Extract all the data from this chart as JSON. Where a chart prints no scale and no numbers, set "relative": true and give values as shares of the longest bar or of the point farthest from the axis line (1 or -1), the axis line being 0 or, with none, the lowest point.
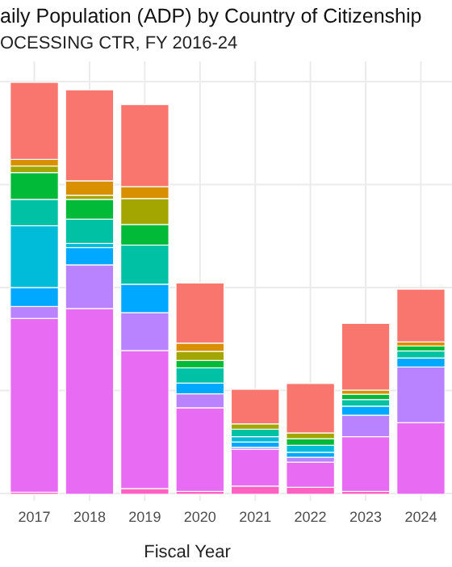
{
  "chart_data": {
    "type": "bar",
    "title": "aily Population (ADP) by Country of Citizenship",
    "subtitle": "OCESSING CTR, FY 2016-24",
    "xlabel": "Fiscal Year",
    "categories": [
      "2017",
      "2018",
      "2019",
      "2020",
      "2021",
      "2022",
      "2023",
      "2024"
    ],
    "stacked": true,
    "relative": true,
    "grid": true,
    "series": [
      {
        "color": "#ff61c3",
        "values": [
          0.005,
          null,
          0.014,
          0.007,
          0.02,
          0.017,
          0.007,
          null
        ]
      },
      {
        "color": "#e76bf3",
        "values": [
          0.422,
          0.451,
          0.335,
          0.203,
          0.089,
          0.061,
          0.133,
          0.174
        ]
      },
      {
        "color": "#b983ff",
        "values": [
          0.029,
          0.106,
          0.092,
          0.034,
          0.005,
          0.012,
          0.052,
          0.135
        ]
      },
      {
        "color": "#00a9ff",
        "values": [
          0.046,
          0.042,
          0.069,
          0.026,
          0.013,
          0.012,
          0.022,
          0.022
        ]
      },
      {
        "color": "#00bcd8",
        "values": [
          0.15,
          0.01,
          0,
          0,
          0.013,
          0.017,
          0,
          0
        ]
      },
      {
        "color": "#00c1a3",
        "values": [
          0.064,
          0.059,
          0.095,
          0.037,
          0.018,
          0,
          0.016,
          0.017
        ]
      },
      {
        "color": "#00ba38",
        "values": [
          0.065,
          0.048,
          0.05,
          0.018,
          0,
          0.016,
          0.013,
          0.012
        ]
      },
      {
        "color": "#a3a500",
        "values": [
          0.016,
          0.01,
          0.063,
          0.022,
          0.013,
          0.014,
          0,
          0
        ]
      },
      {
        "color": "#d89000",
        "values": [
          0.016,
          0.035,
          0.029,
          0.02,
          0,
          0,
          0.01,
          0.01
        ]
      },
      {
        "color": "#f8766d",
        "values": [
          0.187,
          0.221,
          0.199,
          0.146,
          0.084,
          0.12,
          0.162,
          0.128
        ]
      }
    ]
  }
}
